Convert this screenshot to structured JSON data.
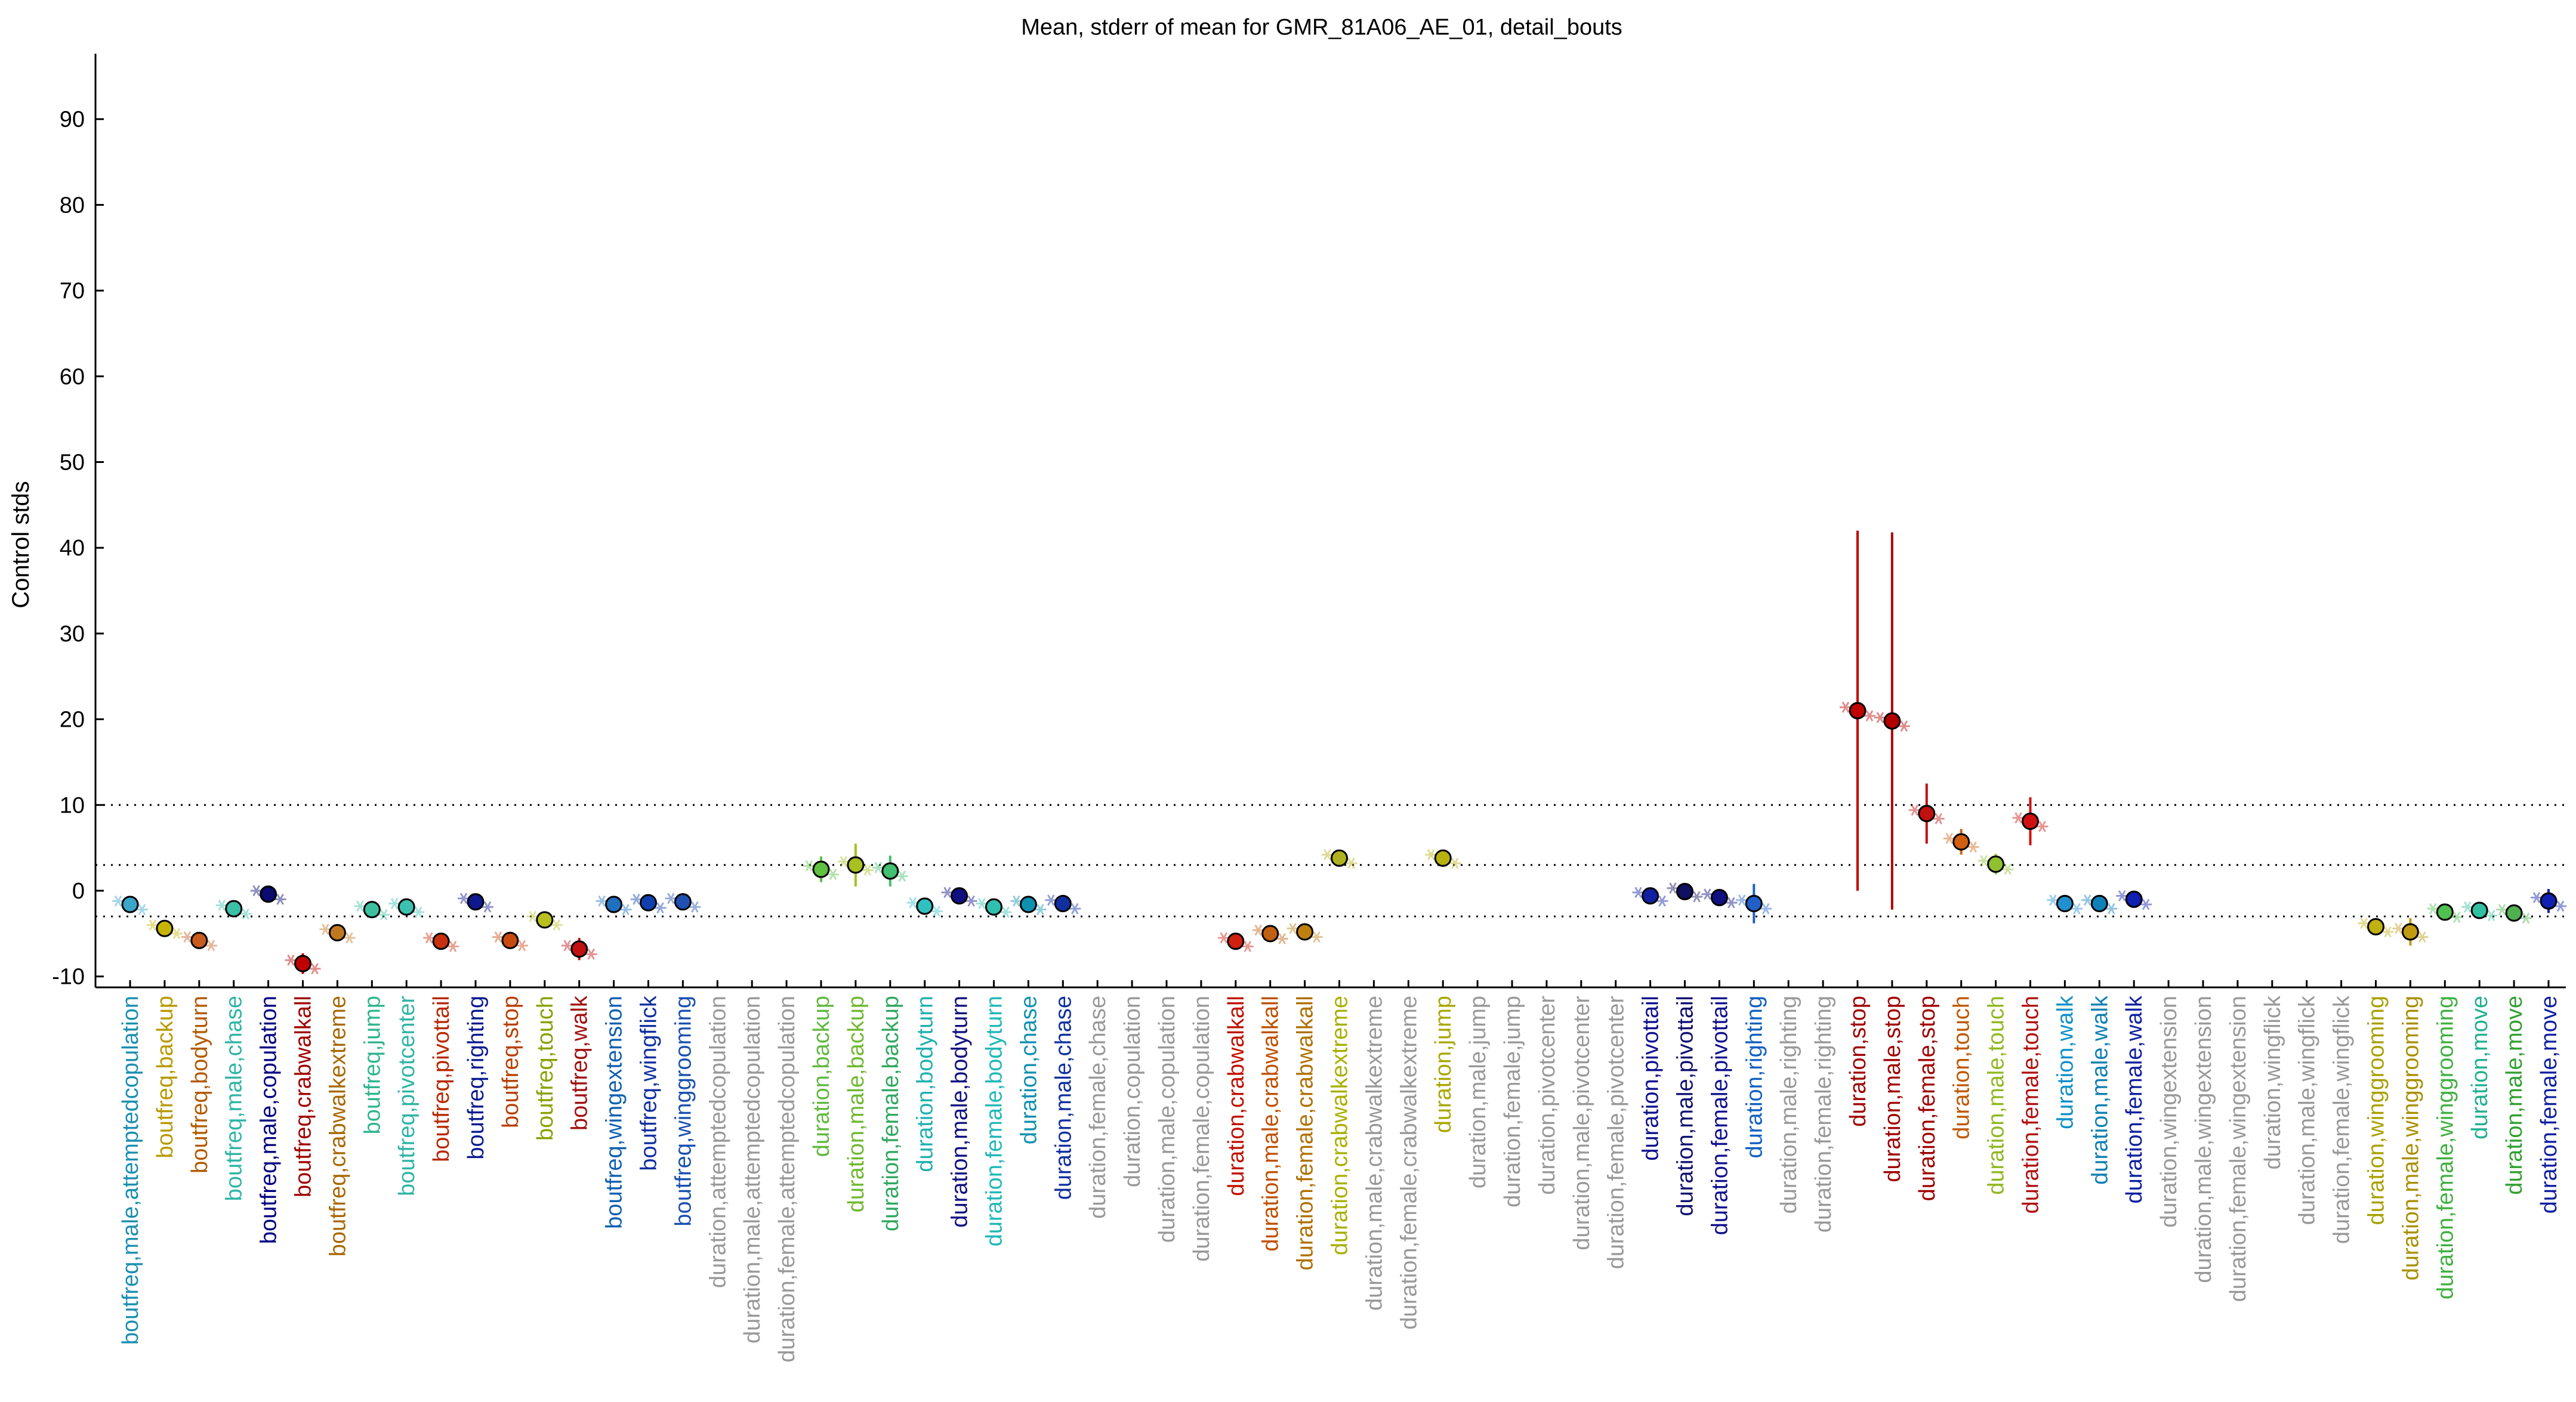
{
  "chart_data": {
    "type": "scatter",
    "title": "Mean, stderr of mean for GMR_81A06_AE_01, detail_bouts",
    "xlabel": "",
    "ylabel": "Control stds",
    "ylim": [
      -11,
      98
    ],
    "yticks": [
      -10,
      0,
      10,
      20,
      30,
      40,
      50,
      60,
      70,
      80,
      90
    ],
    "reference_lines": [
      -3,
      3,
      10
    ],
    "categories": [
      "boutfreq,male,attemptedcopulation",
      "boutfreq,backup",
      "boutfreq,bodyturn",
      "boutfreq,male,chase",
      "boutfreq,male,copulation",
      "boutfreq,crabwalkall",
      "boutfreq,crabwalkextreme",
      "boutfreq,jump",
      "boutfreq,pivotcenter",
      "boutfreq,pivottail",
      "boutfreq,righting",
      "boutfreq,stop",
      "boutfreq,touch",
      "boutfreq,walk",
      "boutfreq,wingextension",
      "boutfreq,wingflick",
      "boutfreq,winggrooming",
      "duration,attemptedcopulation",
      "duration,male,attemptedcopulation",
      "duration,female,attemptedcopulation",
      "duration,backup",
      "duration,male,backup",
      "duration,female,backup",
      "duration,bodyturn",
      "duration,male,bodyturn",
      "duration,female,bodyturn",
      "duration,chase",
      "duration,male,chase",
      "duration,female,chase",
      "duration,copulation",
      "duration,male,copulation",
      "duration,female,copulation",
      "duration,crabwalkall",
      "duration,male,crabwalkall",
      "duration,female,crabwalkall",
      "duration,crabwalkextreme",
      "duration,male,crabwalkextreme",
      "duration,female,crabwalkextreme",
      "duration,jump",
      "duration,male,jump",
      "duration,female,jump",
      "duration,pivotcenter",
      "duration,male,pivotcenter",
      "duration,female,pivotcenter",
      "duration,pivottail",
      "duration,male,pivottail",
      "duration,female,pivottail",
      "duration,righting",
      "duration,male,righting",
      "duration,female,righting",
      "duration,stop",
      "duration,male,stop",
      "duration,female,stop",
      "duration,touch",
      "duration,male,touch",
      "duration,female,touch",
      "duration,walk",
      "duration,male,walk",
      "duration,female,walk",
      "duration,wingextension",
      "duration,male,wingextension",
      "duration,female,wingextension",
      "duration,wingflick",
      "duration,male,wingflick",
      "duration,female,wingflick",
      "duration,winggrooming",
      "duration,male,winggrooming",
      "duration,female,winggrooming",
      "duration,move",
      "duration,male,move",
      "duration,female,move"
    ],
    "label_colors": [
      "#1a8fb0",
      "#b89a00",
      "#b35a00",
      "#2fb5a5",
      "#000080",
      "#a00000",
      "#a86800",
      "#2fb590",
      "#2fb5a5",
      "#b82800",
      "#0a1a90",
      "#b84000",
      "#8aa000",
      "#a01010",
      "#1060b0",
      "#1030a0",
      "#1a50b0",
      "#999999",
      "#999999",
      "#999999",
      "#60b840",
      "#70b830",
      "#30a860",
      "#20b0b0",
      "#101080",
      "#20b8b8",
      "#1090b0",
      "#1030a0",
      "#999999",
      "#999999",
      "#999999",
      "#999999",
      "#c01000",
      "#c05000",
      "#b07000",
      "#a8b000",
      "#999999",
      "#999999",
      "#a8a800",
      "#999999",
      "#999999",
      "#999999",
      "#999999",
      "#999999",
      "#101090",
      "#101070",
      "#101090",
      "#1060c0",
      "#999999",
      "#999999",
      "#a00000",
      "#a00000",
      "#a00000",
      "#c05800",
      "#90b820",
      "#b01010",
      "#1090c8",
      "#1080b0",
      "#1020a0",
      "#999999",
      "#999999",
      "#999999",
      "#999999",
      "#999999",
      "#999999",
      "#a8a000",
      "#a89000",
      "#40b040",
      "#20b090",
      "#30a030",
      "#1020a0"
    ],
    "means": [
      -1.6,
      -4.4,
      -5.8,
      -2.1,
      -0.4,
      -8.5,
      -4.9,
      -2.2,
      -1.9,
      -5.9,
      -1.3,
      -5.8,
      -3.4,
      -6.8,
      -1.6,
      -1.4,
      -1.3,
      null,
      null,
      null,
      2.5,
      3.0,
      2.3,
      -1.8,
      -0.6,
      -1.9,
      -1.6,
      -1.5,
      null,
      null,
      null,
      null,
      -5.9,
      -5.0,
      -4.8,
      3.8,
      null,
      null,
      3.8,
      null,
      null,
      null,
      null,
      null,
      -0.6,
      -0.1,
      -0.8,
      -1.5,
      null,
      null,
      21.0,
      19.8,
      9.0,
      5.7,
      3.1,
      8.1,
      -1.5,
      -1.5,
      -1.0,
      null,
      null,
      null,
      null,
      null,
      null,
      -4.2,
      -4.8,
      -2.5,
      -2.3,
      -2.6,
      -1.2
    ],
    "sem": [
      0.4,
      0.8,
      1.0,
      0.4,
      0.3,
      1.2,
      0.6,
      0.4,
      0.4,
      0.8,
      0.3,
      0.8,
      0.5,
      1.3,
      0.3,
      0.3,
      1.0,
      null,
      null,
      null,
      1.5,
      2.5,
      1.8,
      0.5,
      0.4,
      0.6,
      0.3,
      0.3,
      null,
      null,
      null,
      null,
      0.8,
      0.5,
      0.9,
      0.5,
      null,
      null,
      0.3,
      null,
      null,
      null,
      null,
      null,
      0.3,
      0.3,
      0.3,
      2.3,
      null,
      null,
      21.0,
      22.0,
      3.5,
      1.5,
      1.2,
      2.8,
      0.5,
      0.6,
      0.7,
      null,
      null,
      null,
      null,
      null,
      null,
      0.9,
      1.6,
      0.8,
      0.7,
      0.5,
      1.4
    ],
    "marker_colors": [
      "#3aa6c8",
      "#c8b400",
      "#c85a20",
      "#3cc0a8",
      "#0a0a70",
      "#c00000",
      "#c07820",
      "#3cc0a0",
      "#3cc0b0",
      "#c83010",
      "#101890",
      "#c84a10",
      "#b8c020",
      "#c01010",
      "#2070c0",
      "#1040b0",
      "#2050b0",
      null,
      null,
      null,
      "#60c040",
      "#a8c020",
      "#40c070",
      "#30c0c0",
      "#101080",
      "#30c0b0",
      "#1090b0",
      "#1030a0",
      null,
      null,
      null,
      null,
      "#d02010",
      "#c06010",
      "#c08010",
      "#b0b020",
      null,
      null,
      "#b8b010",
      null,
      null,
      null,
      null,
      null,
      "#1020a0",
      "#101060",
      "#101080",
      "#2060c8",
      null,
      null,
      "#c00000",
      "#b00000",
      "#c01010",
      "#d06010",
      "#90c030",
      "#d01010",
      "#2090d0",
      "#1080b8",
      "#1020b0",
      null,
      null,
      null,
      null,
      null,
      null,
      "#c0b010",
      "#c09a10",
      "#50c050",
      "#30c0a0",
      "#50b050",
      "#1020b0"
    ]
  }
}
